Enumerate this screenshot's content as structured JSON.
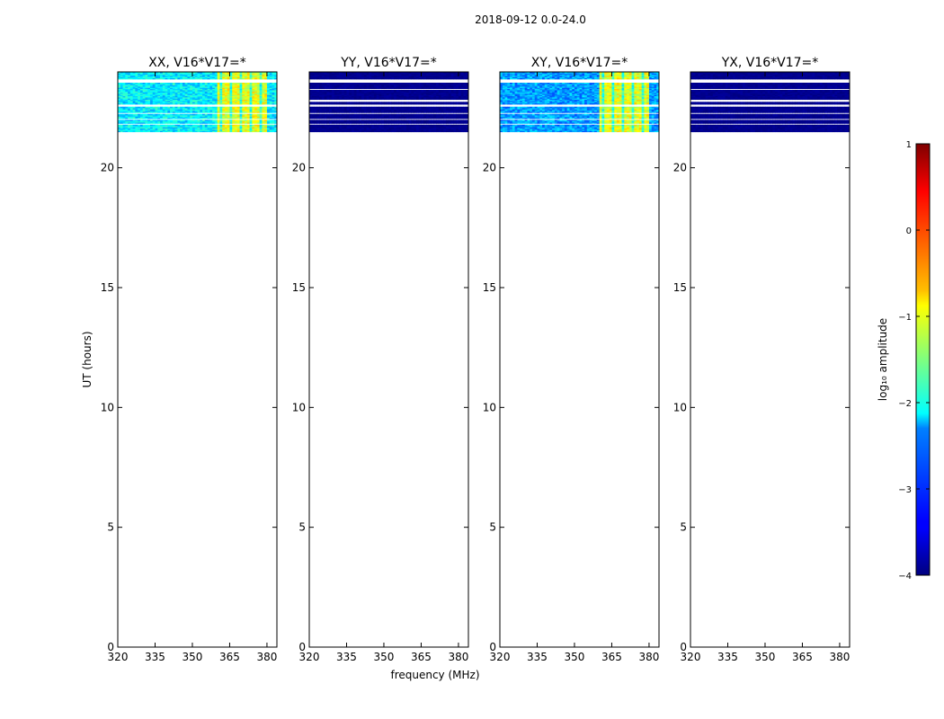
{
  "figure": {
    "suptitle": "2018-09-12 0.0-24.0"
  },
  "chart_data": [
    {
      "type": "heatmap",
      "title": "XX, V16*V17=*",
      "xlabel": "",
      "ylabel": "UT (hours)",
      "xlim": [
        320,
        384
      ],
      "ylim": [
        0,
        24
      ],
      "xticks": [
        "320",
        "335",
        "350",
        "365",
        "380"
      ],
      "yticks": [
        "0",
        "5",
        "10",
        "15",
        "20"
      ],
      "data_rows_ut": [
        21.5,
        24.0
      ],
      "gap_rows_ut": [
        [
          23.55,
          23.7
        ],
        [
          22.55,
          22.65
        ],
        [
          22.25,
          22.3
        ],
        [
          22.0,
          22.05
        ],
        [
          21.8,
          21.85
        ]
      ],
      "background_log10_amplitude": -2.2,
      "bright_band_mhz": [
        360,
        380
      ],
      "bright_band_log10_amplitude": -1.0
    },
    {
      "type": "heatmap",
      "title": "YY, V16*V17=*",
      "xlabel": "",
      "ylabel": "",
      "xlim": [
        320,
        384
      ],
      "ylim": [
        0,
        24
      ],
      "xticks": [
        "320",
        "335",
        "350",
        "365",
        "380"
      ],
      "yticks": [
        "0",
        "5",
        "10",
        "15",
        "20"
      ],
      "data_rows_ut": [
        21.5,
        24.0
      ],
      "gap_rows_ut": [
        [
          23.55,
          23.7
        ],
        [
          23.25,
          23.3
        ],
        [
          22.75,
          22.85
        ],
        [
          22.55,
          22.65
        ],
        [
          22.25,
          22.3
        ],
        [
          22.0,
          22.05
        ],
        [
          21.8,
          21.85
        ]
      ],
      "background_log10_amplitude": -4.0,
      "bright_band_mhz": null,
      "bright_band_log10_amplitude": null
    },
    {
      "type": "heatmap",
      "title": "XY, V16*V17=*",
      "xlabel": "",
      "ylabel": "",
      "xlim": [
        320,
        384
      ],
      "ylim": [
        0,
        24
      ],
      "xticks": [
        "320",
        "335",
        "350",
        "365",
        "380"
      ],
      "yticks": [
        "0",
        "5",
        "10",
        "15",
        "20"
      ],
      "data_rows_ut": [
        21.5,
        24.0
      ],
      "gap_rows_ut": [
        [
          23.55,
          23.7
        ],
        [
          22.55,
          22.65
        ],
        [
          22.25,
          22.3
        ],
        [
          22.0,
          22.05
        ],
        [
          21.8,
          21.85
        ]
      ],
      "background_log10_amplitude": -2.6,
      "bright_band_mhz": [
        360,
        380
      ],
      "bright_band_log10_amplitude": -1.0
    },
    {
      "type": "heatmap",
      "title": "YX, V16*V17=*",
      "xlabel": "",
      "ylabel": "",
      "xlim": [
        320,
        384
      ],
      "ylim": [
        0,
        24
      ],
      "xticks": [
        "320",
        "335",
        "350",
        "365",
        "380"
      ],
      "yticks": [
        "0",
        "5",
        "10",
        "15",
        "20"
      ],
      "data_rows_ut": [
        21.5,
        24.0
      ],
      "gap_rows_ut": [
        [
          23.55,
          23.7
        ],
        [
          23.25,
          23.3
        ],
        [
          22.75,
          22.85
        ],
        [
          22.55,
          22.65
        ],
        [
          22.25,
          22.3
        ],
        [
          22.0,
          22.05
        ],
        [
          21.8,
          21.85
        ]
      ],
      "background_log10_amplitude": -4.0,
      "bright_band_mhz": null,
      "bright_band_log10_amplitude": null
    }
  ],
  "shared_axes": {
    "xlabel": "frequency (MHz)"
  },
  "colorbar": {
    "label": "log₁₀ amplitude",
    "range": [
      -4,
      1
    ],
    "ticks": [
      "1",
      "0",
      "−1",
      "−2",
      "−3",
      "−4"
    ],
    "colormap": "jet"
  }
}
